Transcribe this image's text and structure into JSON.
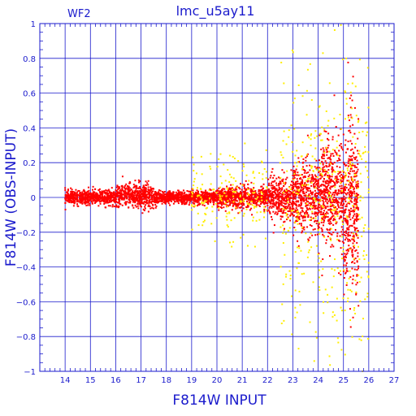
{
  "chart_data": {
    "type": "scatter",
    "title": "lmc_u5ay11",
    "corner_label": "WF2",
    "xlabel": "F814W INPUT",
    "ylabel": "F814W (OBS-INPUT)",
    "xlim": [
      13,
      27
    ],
    "ylim": [
      -1,
      1
    ],
    "x_ticks": [
      14,
      15,
      16,
      17,
      18,
      19,
      20,
      21,
      22,
      23,
      24,
      25,
      26,
      27
    ],
    "y_ticks": [
      -1,
      -0.8,
      -0.6,
      -0.4,
      -0.2,
      0,
      0.2,
      0.4,
      0.6,
      0.8,
      1
    ],
    "y_tick_labels": [
      "−1",
      "−0.8",
      "−0.6",
      "−0.4",
      "−0.2",
      "0",
      "0.2",
      "0.4",
      "0.6",
      "0.8",
      "1"
    ],
    "grid": true,
    "colors": {
      "axis": "#1a1acc",
      "grid": "#1a1acc",
      "series_red": "#ff0000",
      "series_yellow": "#ffee00"
    },
    "series": [
      {
        "color": "red",
        "description_points": "dense band near 0; scatter grows with magnitude, fan shape 22–25.6",
        "bins": [
          {
            "x": [
              14.0,
              15.0
            ],
            "y_median": 0.0,
            "y_spread": 0.02
          },
          {
            "x": [
              15.0,
              16.0
            ],
            "y_median": 0.0,
            "y_spread": 0.02
          },
          {
            "x": [
              16.0,
              17.5
            ],
            "y_median": 0.01,
            "y_spread": 0.035
          },
          {
            "x": [
              17.5,
              20.0
            ],
            "y_median": 0.0,
            "y_spread": 0.018
          },
          {
            "x": [
              20.0,
              22.0
            ],
            "y_median": 0.0,
            "y_spread": 0.03
          },
          {
            "x": [
              22.0,
              23.0
            ],
            "y_median": 0.0,
            "y_spread": 0.06
          },
          {
            "x": [
              23.0,
              24.0
            ],
            "y_median": 0.0,
            "y_spread": 0.1
          },
          {
            "x": [
              24.0,
              25.0
            ],
            "y_median": 0.02,
            "y_spread": 0.15
          },
          {
            "x": [
              25.0,
              25.6
            ],
            "y_median": -0.05,
            "y_spread": 0.25
          }
        ]
      },
      {
        "color": "yellow",
        "description_points": "sparse points mostly 22.5–26 with larger scatter",
        "bins": [
          {
            "x": [
              19.0,
              22.0
            ],
            "y_median": 0.0,
            "y_spread": 0.12
          },
          {
            "x": [
              22.5,
              24.0
            ],
            "y_median": -0.05,
            "y_spread": 0.35
          },
          {
            "x": [
              24.0,
              26.0
            ],
            "y_median": -0.05,
            "y_spread": 0.45
          }
        ]
      }
    ]
  }
}
